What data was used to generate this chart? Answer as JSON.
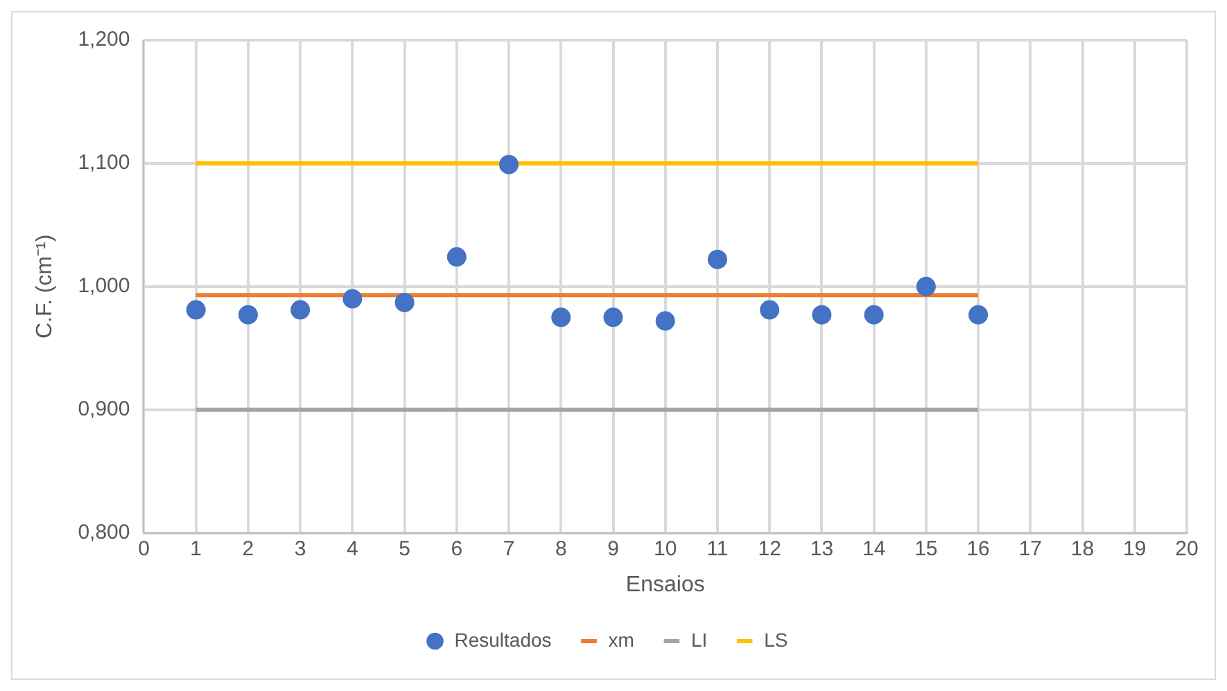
{
  "chart_data": {
    "type": "scatter",
    "xlabel": "Ensaios",
    "ylabel": "C.F. (cm⁻¹)",
    "xlim": [
      0,
      20
    ],
    "xticks": [
      0,
      1,
      2,
      3,
      4,
      5,
      6,
      7,
      8,
      9,
      10,
      11,
      12,
      13,
      14,
      15,
      16,
      17,
      18,
      19,
      20
    ],
    "ylim": [
      0.8,
      1.2
    ],
    "yticks": [
      {
        "value": 0.8,
        "label": "0,800"
      },
      {
        "value": 0.9,
        "label": "0,900"
      },
      {
        "value": 1.0,
        "label": "1,000"
      },
      {
        "value": 1.1,
        "label": "1,100"
      },
      {
        "value": 1.2,
        "label": "1,200"
      }
    ],
    "grid": true,
    "legend": "bottom",
    "series": [
      {
        "name": "Resultados",
        "type": "scatter",
        "marker": "circle",
        "color": "#4472c4",
        "x": [
          1,
          2,
          3,
          4,
          5,
          6,
          7,
          8,
          9,
          10,
          11,
          12,
          13,
          14,
          15,
          16
        ],
        "values": [
          0.981,
          0.977,
          0.981,
          0.99,
          0.987,
          1.024,
          1.099,
          0.975,
          0.975,
          0.972,
          1.022,
          0.981,
          0.977,
          0.977,
          1.0,
          0.977
        ]
      },
      {
        "name": "xm",
        "type": "line",
        "marker": "none",
        "color": "#ed7d31",
        "x": [
          1,
          16
        ],
        "values": [
          0.993,
          0.993
        ]
      },
      {
        "name": "LI",
        "type": "line",
        "marker": "none",
        "color": "#a5a5a5",
        "x": [
          1,
          16
        ],
        "values": [
          0.9,
          0.9
        ]
      },
      {
        "name": "LS",
        "type": "line",
        "marker": "none",
        "color": "#ffc000",
        "x": [
          1,
          16
        ],
        "values": [
          1.1,
          1.1
        ]
      }
    ]
  }
}
